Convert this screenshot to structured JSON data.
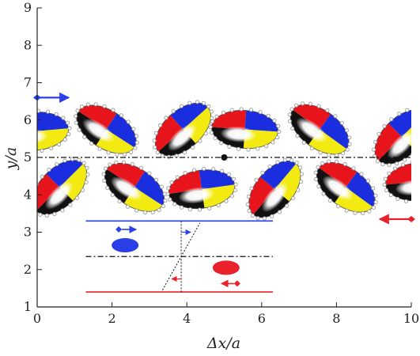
{
  "axes": {
    "xlabel": "Δx/a",
    "ylabel": "y/a",
    "xlim": [
      0,
      10
    ],
    "ylim": [
      1,
      9
    ],
    "xticks": [
      0,
      2,
      4,
      6,
      8,
      10
    ],
    "yticks": [
      1,
      2,
      3,
      4,
      5,
      6,
      7,
      8,
      9
    ]
  },
  "colors": {
    "upper_wall": "#2a3fe8",
    "lower_wall": "#e8212b",
    "quad_red": "#e8141b",
    "quad_blue": "#1a2ee0",
    "quad_yellow": "#f2ea10",
    "quad_black": "#111111",
    "centerline": "#111111",
    "bead": "#9a9a9a"
  },
  "centerline_y": 5.0,
  "marker_point": {
    "x": 5.0,
    "y": 5.0
  },
  "wall_arrows": [
    {
      "kind": "upper",
      "x": 0.0,
      "y": 6.6,
      "direction": "right",
      "color": "#2a3fe8"
    },
    {
      "kind": "lower",
      "x": 10.0,
      "y": 3.35,
      "direction": "left",
      "color": "#e8212b"
    }
  ],
  "inset": {
    "top_wall_y": 3.3,
    "bottom_wall_y": 1.4,
    "mid_line_y": 2.35,
    "x_range": [
      1.3,
      6.3
    ],
    "vertical_x": 3.85,
    "slanted_line": [
      [
        3.35,
        1.45
      ],
      [
        4.35,
        3.25
      ]
    ],
    "blue_particle": {
      "x": 2.35,
      "y": 2.65
    },
    "red_particle": {
      "x": 5.05,
      "y": 2.05
    }
  },
  "particles": [
    {
      "x": -0.05,
      "y": 5.7,
      "angle": -5
    },
    {
      "x": 1.85,
      "y": 5.75,
      "angle": 33
    },
    {
      "x": 3.9,
      "y": 5.75,
      "angle": -42
    },
    {
      "x": 5.55,
      "y": 5.75,
      "angle": 4
    },
    {
      "x": 7.55,
      "y": 5.75,
      "angle": 36
    },
    {
      "x": 9.75,
      "y": 5.55,
      "angle": -45
    },
    {
      "x": 0.6,
      "y": 4.2,
      "angle": -45
    },
    {
      "x": 2.6,
      "y": 4.2,
      "angle": 33
    },
    {
      "x": 4.4,
      "y": 4.15,
      "angle": -8
    },
    {
      "x": 6.35,
      "y": 4.15,
      "angle": -50
    },
    {
      "x": 8.25,
      "y": 4.2,
      "angle": 36
    },
    {
      "x": 10.2,
      "y": 4.35,
      "angle": -5
    }
  ]
}
